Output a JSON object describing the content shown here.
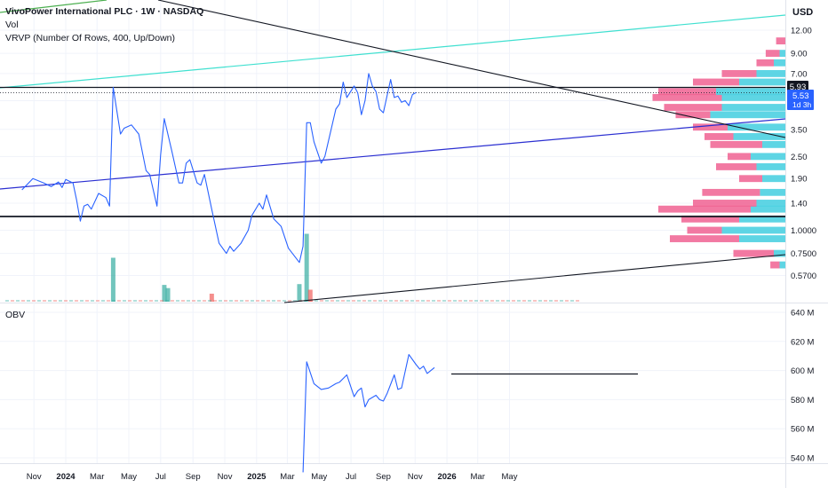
{
  "header": {
    "symbol_line": "VivoPower International PLC · 1W · NASDAQ",
    "vol_label": "Vol",
    "vrvp_label": "VRVP (Number Of Rows, 400, Up/Down)",
    "currency": "USD",
    "obv_label": "OBV"
  },
  "badges": {
    "price_level": "5.93",
    "last_price": "5.53",
    "countdown": "1d 3h"
  },
  "colors": {
    "price_line": "#2962ff",
    "volume_up": "#26a69a",
    "volume_down": "#ef5350",
    "vrvp_up": "#4dd0e1",
    "vrvp_down": "#f06292",
    "trend_cyan": "#40e0d0",
    "trend_blue": "#2b2fd1",
    "trend_green": "#4caf50",
    "badge_dark": "#131722",
    "badge_blue": "#2962ff"
  },
  "chart_data": [
    {
      "type": "line",
      "panel": "price",
      "scale": "log",
      "y_ticks": [
        "12.00",
        "9.00",
        "7.00",
        "5.00",
        "3.50",
        "2.50",
        "1.90",
        "1.40",
        "1.0000",
        "0.7500",
        "0.5700"
      ],
      "x_ticks": [
        "Nov",
        "2024",
        "Mar",
        "May",
        "Jul",
        "Sep",
        "Nov",
        "2025",
        "Mar",
        "May",
        "Jul",
        "Sep",
        "Nov",
        "2026",
        "Mar",
        "May"
      ],
      "series": [
        {
          "values": [
            [
              "2023-10-09",
              1.65
            ],
            [
              "2023-10-30",
              1.9
            ],
            [
              "2023-11-20",
              1.8
            ],
            [
              "2023-12-04",
              1.72
            ],
            [
              "2023-12-18",
              1.82
            ],
            [
              "2023-12-25",
              1.7
            ],
            [
              "2024-01-01",
              1.88
            ],
            [
              "2024-01-15",
              1.8
            ],
            [
              "2024-01-22",
              1.45
            ],
            [
              "2024-01-29",
              1.12
            ],
            [
              "2024-02-05",
              1.35
            ],
            [
              "2024-02-12",
              1.38
            ],
            [
              "2024-02-19",
              1.3
            ],
            [
              "2024-03-04",
              1.58
            ],
            [
              "2024-03-18",
              1.5
            ],
            [
              "2024-03-25",
              1.35
            ],
            [
              "2024-04-01",
              5.9
            ],
            [
              "2024-04-15",
              3.3
            ],
            [
              "2024-04-22",
              3.55
            ],
            [
              "2024-05-06",
              3.7
            ],
            [
              "2024-05-20",
              3.3
            ],
            [
              "2024-06-03",
              2.1
            ],
            [
              "2024-06-10",
              2.0
            ],
            [
              "2024-06-24",
              1.35
            ],
            [
              "2024-07-01",
              2.55
            ],
            [
              "2024-07-08",
              4.0
            ],
            [
              "2024-07-22",
              2.7
            ],
            [
              "2024-08-05",
              1.8
            ],
            [
              "2024-08-12",
              1.8
            ],
            [
              "2024-08-19",
              2.3
            ],
            [
              "2024-08-26",
              2.4
            ],
            [
              "2024-09-09",
              1.8
            ],
            [
              "2024-09-16",
              1.75
            ],
            [
              "2024-09-23",
              2.0
            ],
            [
              "2024-10-07",
              1.3
            ],
            [
              "2024-10-21",
              0.85
            ],
            [
              "2024-11-04",
              0.75
            ],
            [
              "2024-11-11",
              0.82
            ],
            [
              "2024-11-18",
              0.77
            ],
            [
              "2024-12-02",
              0.85
            ],
            [
              "2024-12-16",
              1.0
            ],
            [
              "2024-12-23",
              1.2
            ],
            [
              "2025-01-06",
              1.4
            ],
            [
              "2025-01-13",
              1.3
            ],
            [
              "2025-01-20",
              1.55
            ],
            [
              "2025-02-03",
              1.15
            ],
            [
              "2025-02-17",
              1.05
            ],
            [
              "2025-03-03",
              0.8
            ],
            [
              "2025-03-24",
              0.67
            ],
            [
              "2025-03-31",
              0.82
            ],
            [
              "2025-04-07",
              3.8
            ],
            [
              "2025-04-14",
              3.8
            ],
            [
              "2025-04-21",
              3.0
            ],
            [
              "2025-05-05",
              2.3
            ],
            [
              "2025-05-12",
              2.5
            ],
            [
              "2025-06-02",
              4.5
            ],
            [
              "2025-06-09",
              4.8
            ],
            [
              "2025-06-16",
              6.3
            ],
            [
              "2025-06-23",
              5.2
            ],
            [
              "2025-07-07",
              6.0
            ],
            [
              "2025-07-14",
              5.5
            ],
            [
              "2025-07-21",
              4.2
            ],
            [
              "2025-07-28",
              5.0
            ],
            [
              "2025-08-04",
              7.0
            ],
            [
              "2025-08-11",
              6.0
            ],
            [
              "2025-08-18",
              5.6
            ],
            [
              "2025-08-25",
              4.5
            ],
            [
              "2025-09-01",
              4.3
            ],
            [
              "2025-09-08",
              5.3
            ],
            [
              "2025-09-15",
              6.5
            ],
            [
              "2025-09-22",
              5.2
            ],
            [
              "2025-09-29",
              5.3
            ],
            [
              "2025-10-06",
              4.9
            ],
            [
              "2025-10-13",
              5.0
            ],
            [
              "2025-10-20",
              4.7
            ],
            [
              "2025-10-27",
              5.4
            ],
            [
              "2025-11-03",
              5.53
            ]
          ]
        }
      ]
    },
    {
      "type": "bar",
      "panel": "volume",
      "note": "relative volume (no axis shown)",
      "series": [
        {
          "values": [
            [
              "2024-04-01",
              0.55,
              "up"
            ],
            [
              "2024-07-08",
              0.21,
              "up"
            ],
            [
              "2024-07-15",
              0.17,
              "up"
            ],
            [
              "2024-10-07",
              0.1,
              "down"
            ],
            [
              "2025-03-24",
              0.22,
              "up"
            ],
            [
              "2025-04-07",
              0.85,
              "up"
            ],
            [
              "2025-04-14",
              0.15,
              "down"
            ]
          ]
        }
      ]
    },
    {
      "type": "line",
      "panel": "obv",
      "y_ticks": [
        "640 M",
        "620 M",
        "600 M",
        "580 M",
        "560 M",
        "540 M"
      ],
      "series": [
        {
          "values": [
            [
              "2025-03-31",
              530
            ],
            [
              "2025-04-07",
              606
            ],
            [
              "2025-04-21",
              591
            ],
            [
              "2025-05-05",
              587
            ],
            [
              "2025-05-19",
              588
            ],
            [
              "2025-06-02",
              591
            ],
            [
              "2025-06-09",
              592
            ],
            [
              "2025-06-23",
              597
            ],
            [
              "2025-07-07",
              582
            ],
            [
              "2025-07-14",
              586
            ],
            [
              "2025-07-21",
              588
            ],
            [
              "2025-07-28",
              575
            ],
            [
              "2025-08-04",
              580
            ],
            [
              "2025-08-18",
              583
            ],
            [
              "2025-08-25",
              580
            ],
            [
              "2025-09-01",
              579
            ],
            [
              "2025-09-08",
              584
            ],
            [
              "2025-09-22",
              597
            ],
            [
              "2025-09-29",
              587
            ],
            [
              "2025-10-06",
              588
            ],
            [
              "2025-10-20",
              611
            ],
            [
              "2025-11-03",
              604
            ],
            [
              "2025-11-10",
              601
            ],
            [
              "2025-11-17",
              603
            ],
            [
              "2025-11-24",
              598
            ],
            [
              "2025-12-08",
              602
            ]
          ]
        }
      ]
    },
    {
      "type": "bar",
      "panel": "vrvp",
      "orientation": "horizontal",
      "note": "volume profile: up/down volume by price level, relative",
      "series": [
        {
          "name": "Up",
          "values": [
            [
              0.65,
              0.05
            ],
            [
              0.75,
              0.1
            ],
            [
              0.9,
              0.4
            ],
            [
              1.0,
              0.55
            ],
            [
              1.15,
              0.4
            ],
            [
              1.3,
              0.3
            ],
            [
              1.4,
              0.25
            ],
            [
              1.6,
              0.22
            ],
            [
              1.9,
              0.2
            ],
            [
              2.2,
              0.25
            ],
            [
              2.5,
              0.3
            ],
            [
              2.9,
              0.2
            ],
            [
              3.2,
              0.45
            ],
            [
              3.6,
              0.5
            ],
            [
              4.2,
              0.65
            ],
            [
              4.6,
              0.55
            ],
            [
              5.2,
              0.55
            ],
            [
              5.6,
              0.6
            ],
            [
              6.3,
              0.4
            ],
            [
              7.0,
              0.25
            ],
            [
              8.0,
              0.1
            ],
            [
              9.0,
              0.05
            ]
          ]
        },
        {
          "name": "Down",
          "values": [
            [
              0.65,
              0.08
            ],
            [
              0.75,
              0.35
            ],
            [
              0.9,
              0.6
            ],
            [
              1.0,
              0.3
            ],
            [
              1.15,
              0.5
            ],
            [
              1.3,
              0.8
            ],
            [
              1.4,
              0.55
            ],
            [
              1.6,
              0.5
            ],
            [
              1.9,
              0.2
            ],
            [
              2.2,
              0.35
            ],
            [
              2.5,
              0.2
            ],
            [
              2.9,
              0.45
            ],
            [
              3.2,
              0.25
            ],
            [
              3.6,
              0.3
            ],
            [
              4.2,
              0.3
            ],
            [
              4.6,
              0.5
            ],
            [
              5.2,
              0.6
            ],
            [
              5.6,
              0.5
            ],
            [
              6.3,
              0.4
            ],
            [
              7.0,
              0.3
            ],
            [
              8.0,
              0.15
            ],
            [
              9.0,
              0.12
            ],
            [
              10.5,
              0.08
            ]
          ]
        }
      ]
    }
  ]
}
